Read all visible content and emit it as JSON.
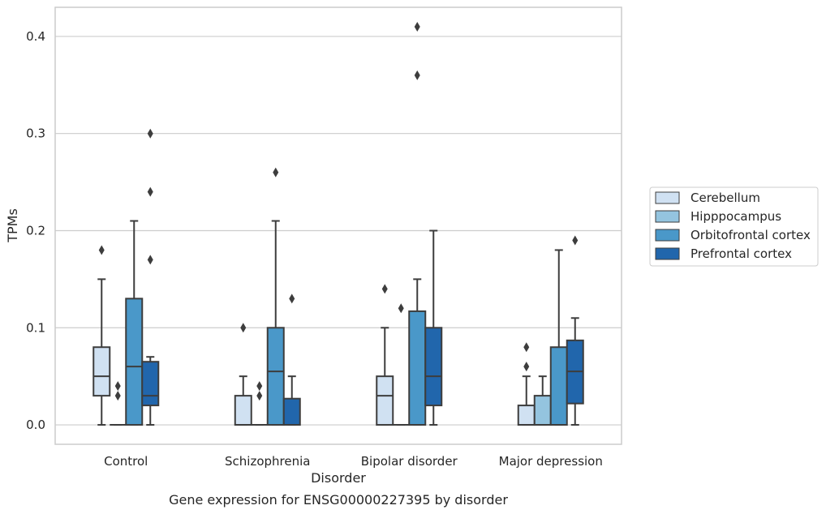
{
  "chart_data": {
    "type": "boxplot",
    "title": "Gene expression for ENSG00000227395 by disorder",
    "xlabel": "Disorder",
    "ylabel": "TPMs",
    "ylim": [
      -0.02,
      0.43
    ],
    "yticks": [
      "0.0",
      "0.1",
      "0.2",
      "0.3",
      "0.4"
    ],
    "grid": "horizontal",
    "legend_placement": "right",
    "categories": [
      "Control",
      "Schizophrenia",
      "Bipolar disorder",
      "Major depression"
    ],
    "series": [
      {
        "name": "Cerebellum",
        "color": "#d0e1f2",
        "boxes": [
          {
            "whislo": 0.0,
            "q1": 0.03,
            "med": 0.05,
            "q3": 0.08,
            "whishi": 0.15,
            "fliers": [
              0.18
            ]
          },
          {
            "whislo": 0.0,
            "q1": 0.0,
            "med": 0.0,
            "q3": 0.03,
            "whishi": 0.05,
            "fliers": [
              0.1
            ]
          },
          {
            "whislo": 0.0,
            "q1": 0.0,
            "med": 0.03,
            "q3": 0.05,
            "whishi": 0.1,
            "fliers": [
              0.14
            ]
          },
          {
            "whislo": 0.0,
            "q1": 0.0,
            "med": 0.0,
            "q3": 0.02,
            "whishi": 0.05,
            "fliers": [
              0.06,
              0.08
            ]
          }
        ]
      },
      {
        "name": "Hipppocampus",
        "color": "#94c4df",
        "boxes": [
          {
            "whislo": 0.0,
            "q1": 0.0,
            "med": 0.0,
            "q3": 0.0,
            "whishi": 0.0,
            "fliers": [
              0.03,
              0.04
            ]
          },
          {
            "whislo": 0.0,
            "q1": 0.0,
            "med": 0.0,
            "q3": 0.0,
            "whishi": 0.0,
            "fliers": [
              0.03,
              0.04
            ]
          },
          {
            "whislo": 0.0,
            "q1": 0.0,
            "med": 0.0,
            "q3": 0.0,
            "whishi": 0.0,
            "fliers": [
              0.12
            ]
          },
          {
            "whislo": 0.0,
            "q1": 0.0,
            "med": 0.0,
            "q3": 0.03,
            "whishi": 0.05,
            "fliers": []
          }
        ]
      },
      {
        "name": "Orbitofrontal cortex",
        "color": "#4a98c9",
        "boxes": [
          {
            "whislo": 0.0,
            "q1": 0.0,
            "med": 0.06,
            "q3": 0.13,
            "whishi": 0.21,
            "fliers": []
          },
          {
            "whislo": 0.0,
            "q1": 0.0,
            "med": 0.055,
            "q3": 0.1,
            "whishi": 0.21,
            "fliers": [
              0.26
            ]
          },
          {
            "whislo": 0.0,
            "q1": 0.0,
            "med": 0.0,
            "q3": 0.117,
            "whishi": 0.15,
            "fliers": [
              0.36,
              0.41
            ]
          },
          {
            "whislo": 0.0,
            "q1": 0.0,
            "med": 0.0,
            "q3": 0.08,
            "whishi": 0.18,
            "fliers": []
          }
        ]
      },
      {
        "name": "Prefrontal cortex",
        "color": "#2166ac",
        "boxes": [
          {
            "whislo": 0.0,
            "q1": 0.02,
            "med": 0.03,
            "q3": 0.065,
            "whishi": 0.07,
            "fliers": [
              0.17,
              0.24,
              0.3
            ]
          },
          {
            "whislo": 0.0,
            "q1": 0.0,
            "med": 0.0,
            "q3": 0.027,
            "whishi": 0.05,
            "fliers": [
              0.13
            ]
          },
          {
            "whislo": 0.0,
            "q1": 0.02,
            "med": 0.05,
            "q3": 0.1,
            "whishi": 0.2,
            "fliers": []
          },
          {
            "whislo": 0.0,
            "q1": 0.022,
            "med": 0.055,
            "q3": 0.087,
            "whishi": 0.11,
            "fliers": [
              0.19
            ]
          }
        ]
      }
    ]
  }
}
